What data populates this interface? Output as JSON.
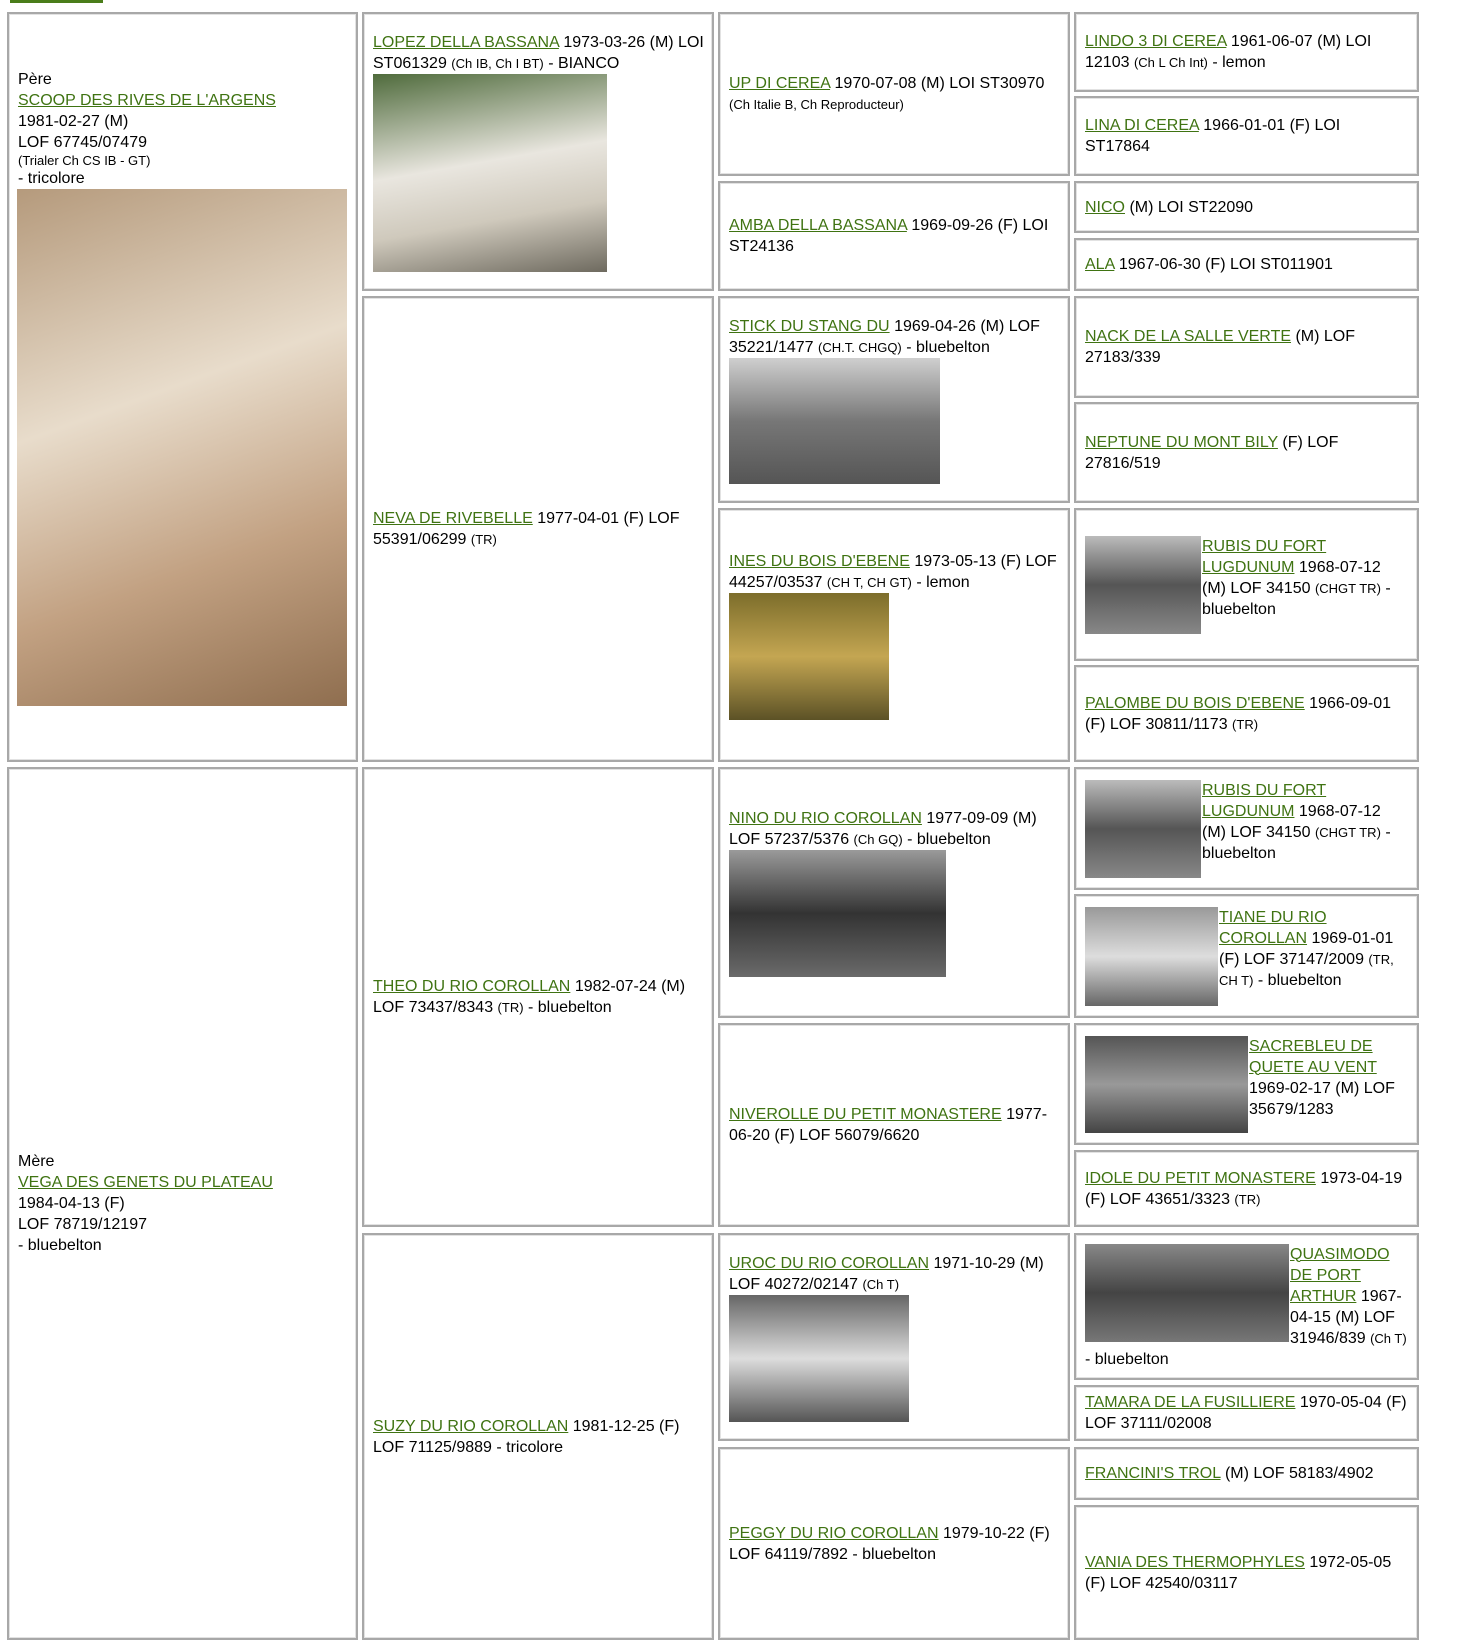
{
  "sire_label": "Père",
  "dam_label": "Mère",
  "parents": [
    {
      "name": "SCOOP DES RIVES DE L'ARGENS",
      "date": "1981-02-27 (M)",
      "registration": "LOF 67745/07479",
      "titles": "(Trialer Ch CS IB - GT)",
      "color": "- tricolore"
    },
    {
      "name": "VEGA DES GENETS DU PLATEAU",
      "date": "1984-04-13 (F)",
      "registration": "LOF 78719/12197",
      "color": "- bluebelton"
    }
  ],
  "grandparents": [
    {
      "name": "LOPEZ DELLA BASSANA",
      "info": "1973-03-26 (M) LOI ST061329",
      "titles": "(Ch IB, Ch I BT)",
      "color": "- BIANCO"
    },
    {
      "name": "NEVA DE RIVEBELLE",
      "info": "1977-04-01 (F) LOF 55391/06299",
      "titles": "(TR)"
    },
    {
      "name": "THEO DU RIO COROLLAN",
      "info": "1982-07-24 (M) LOF 73437/8343",
      "titles": "(TR)",
      "color": "- bluebelton"
    },
    {
      "name": "SUZY DU RIO COROLLAN",
      "info": "1981-12-25 (F) LOF 71125/9889",
      "color": "- tricolore"
    }
  ],
  "great_grandparents": [
    {
      "name": "UP DI CEREA",
      "info": "1970-07-08 (M) LOI ST30970",
      "titles": "(Ch Italie B, Ch Reproducteur)"
    },
    {
      "name": "AMBA DELLA BASSANA",
      "info": "1969-09-26 (F) LOI ST24136"
    },
    {
      "name": "STICK DU STANG DU",
      "info": "1969-04-26 (M) LOF 35221/1477",
      "titles": "(CH.T. CHGQ)",
      "color": "- bluebelton"
    },
    {
      "name": "INES DU BOIS D'EBENE",
      "info": "1973-05-13 (F) LOF 44257/03537",
      "titles": "(CH T, CH GT)",
      "color": "- lemon"
    },
    {
      "name": "NINO DU RIO COROLLAN",
      "info": "1977-09-09 (M) LOF 57237/5376",
      "titles": "(Ch GQ)",
      "color": "- bluebelton"
    },
    {
      "name": "NIVEROLLE DU PETIT MONASTERE",
      "info": "1977-06-20 (F) LOF 56079/6620"
    },
    {
      "name": "UROC DU RIO COROLLAN",
      "info": "1971-10-29 (M) LOF 40272/02147",
      "titles": "(Ch T)"
    },
    {
      "name": "PEGGY DU RIO COROLLAN",
      "info": "1979-10-22 (F) LOF 64119/7892",
      "color": "- bluebelton"
    }
  ],
  "great_great_grandparents": [
    {
      "name": "LINDO 3 DI CEREA",
      "info": "1961-06-07 (M) LOI 12103",
      "titles": "(Ch L Ch Int)",
      "color": "- lemon"
    },
    {
      "name": "LINA DI CEREA",
      "info": "1966-01-01 (F) LOI ST17864"
    },
    {
      "name": "NICO",
      "info": "(M) LOI ST22090"
    },
    {
      "name": "ALA",
      "info": "1967-06-30 (F) LOI ST011901"
    },
    {
      "name": "NACK DE LA SALLE VERTE",
      "info": "(M) LOF 27183/339"
    },
    {
      "name": "NEPTUNE DU MONT BILY",
      "info": "(F) LOF 27816/519"
    },
    {
      "name": "RUBIS DU FORT LUGDUNUM",
      "info": "1968-07-12 (M) LOF 34150",
      "titles": "(CHGT TR)",
      "color": "- bluebelton"
    },
    {
      "name": "PALOMBE DU BOIS D'EBENE",
      "info": "1966-09-01 (F) LOF 30811/1173",
      "titles": "(TR)"
    },
    {
      "name": "RUBIS DU FORT LUGDUNUM",
      "info": "1968-07-12 (M) LOF 34150",
      "titles": "(CHGT TR)",
      "color": "- bluebelton"
    },
    {
      "name": "TIANE DU RIO COROLLAN",
      "info": "1969-01-01 (F) LOF 37147/2009",
      "titles": "(TR, CH T)",
      "color": "- bluebelton"
    },
    {
      "name": "SACREBLEU DE QUETE AU VENT",
      "info": "1969-02-17 (M) LOF 35679/1283"
    },
    {
      "name": "IDOLE DU PETIT MONASTERE",
      "info": "1973-04-19 (F) LOF 43651/3323",
      "titles": "(TR)"
    },
    {
      "name": "QUASIMODO DE PORT ARTHUR",
      "info": "1967-04-15 (M) LOF 31946/839",
      "titles": "(Ch T)",
      "color": "- bluebelton"
    },
    {
      "name": "TAMARA DE LA FUSILLIERE",
      "info": "1970-05-04 (F) LOF 37111/02008"
    },
    {
      "name": "FRANCINI'S TROL",
      "info": "(M) LOF 58183/4902"
    },
    {
      "name": "VANIA DES THERMOPHYLES",
      "info": "1972-05-05 (F) LOF 42540/03117"
    }
  ]
}
